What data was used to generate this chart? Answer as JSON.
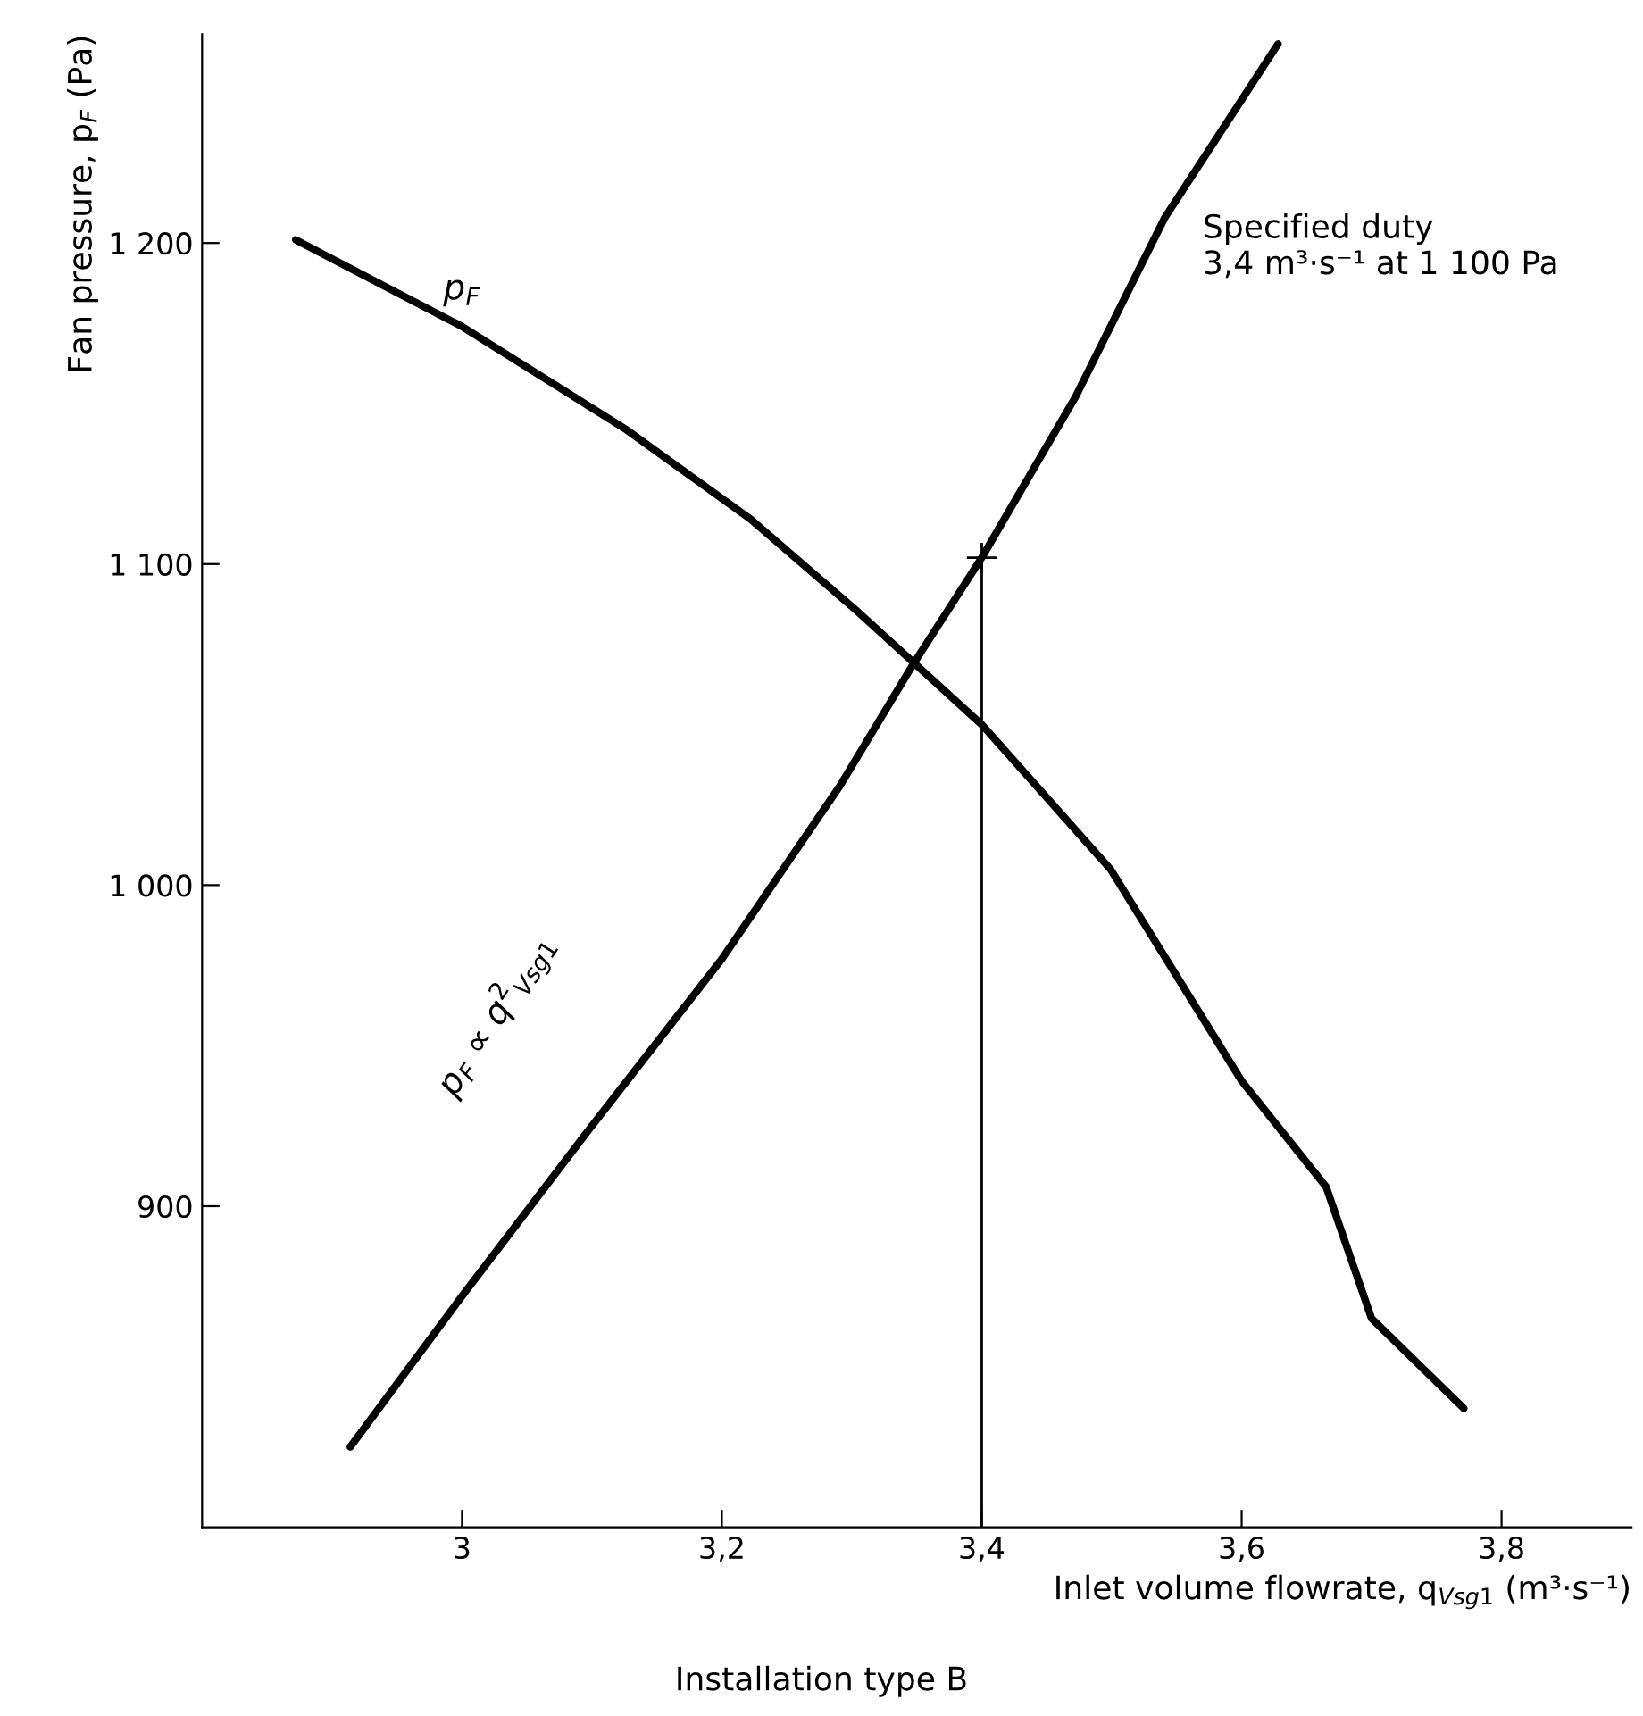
{
  "chart_data": {
    "type": "line",
    "xlabel": "Inlet volume flowrate, q$_{Vsg1}$ (m³·s⁻¹)",
    "ylabel": "Fan pressure, p$_{F}$ (Pa)",
    "xlim": [
      2.8,
      3.9
    ],
    "ylim": [
      800,
      1265
    ],
    "xticks": [
      {
        "value": 3,
        "label": "3"
      },
      {
        "value": 3.2,
        "label": "3,2"
      },
      {
        "value": 3.4,
        "label": "3,4"
      },
      {
        "value": 3.6,
        "label": "3,6"
      },
      {
        "value": 3.8,
        "label": "3,8"
      }
    ],
    "yticks": [
      {
        "value": 900,
        "label": "900"
      },
      {
        "value": 1000,
        "label": "1 000"
      },
      {
        "value": 1100,
        "label": "1 100"
      },
      {
        "value": 1200,
        "label": "1 200"
      }
    ],
    "grid": false,
    "legend": false,
    "marker": "none",
    "line_style": "solid",
    "series": [
      {
        "name": "p$_{F}$",
        "color": "#000000",
        "x": [
          2.872,
          3.0,
          3.126,
          3.222,
          3.305,
          3.4,
          3.499,
          3.6,
          3.665,
          3.7,
          3.771
        ],
        "values": [
          1201,
          1174,
          1142,
          1114,
          1085,
          1050,
          1005,
          939,
          906,
          865,
          837
        ]
      },
      {
        "name": "p$_{F}$ ∝ q$^{2}$$_{Vsg1}$",
        "color": "#000000",
        "x": [
          2.914,
          3.0,
          3.098,
          3.2,
          3.291,
          3.346,
          3.4,
          3.472,
          3.541,
          3.628
        ],
        "values": [
          825,
          872,
          924,
          977,
          1031,
          1068,
          1102,
          1152,
          1208,
          1262
        ]
      }
    ],
    "ref_lines": [
      {
        "axis": "x",
        "value": 3.4,
        "color": "#000000"
      }
    ],
    "annotations": [
      "Specified duty\n3,4 m³·s⁻¹ at 1 100 Pa",
      "Installation type B"
    ]
  }
}
